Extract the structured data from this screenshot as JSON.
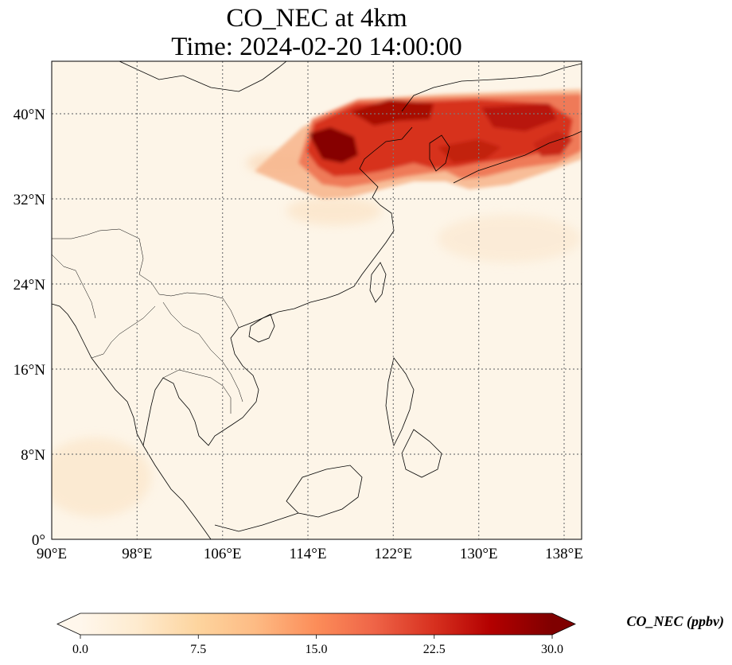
{
  "title": {
    "line1": "CO_NEC at 4km",
    "line2": "Time: 2024-02-20 14:00:00"
  },
  "map": {
    "lon_range": [
      90,
      139
    ],
    "lat_range": [
      0,
      44.5
    ],
    "lon_ticks": [
      "90°E",
      "98°E",
      "106°E",
      "114°E",
      "122°E",
      "130°E",
      "138°E"
    ],
    "lat_ticks": [
      "0°",
      "8°N",
      "16°N",
      "24°N",
      "32°N",
      "40°N"
    ],
    "gridlines": "dotted",
    "colormap": "OrRd",
    "colors": {
      "background": "#fdf5e8",
      "coast": "#000000",
      "grid": "#7a7a7a"
    }
  },
  "colorbar": {
    "label": "CO_NEC (ppbv)",
    "min": 0,
    "max": 30,
    "extend": "both",
    "tick_labels": [
      "0.0",
      "7.5",
      "15.0",
      "22.5",
      "30.0"
    ],
    "tick_values": [
      0,
      7.5,
      15,
      22.5,
      30
    ]
  }
}
